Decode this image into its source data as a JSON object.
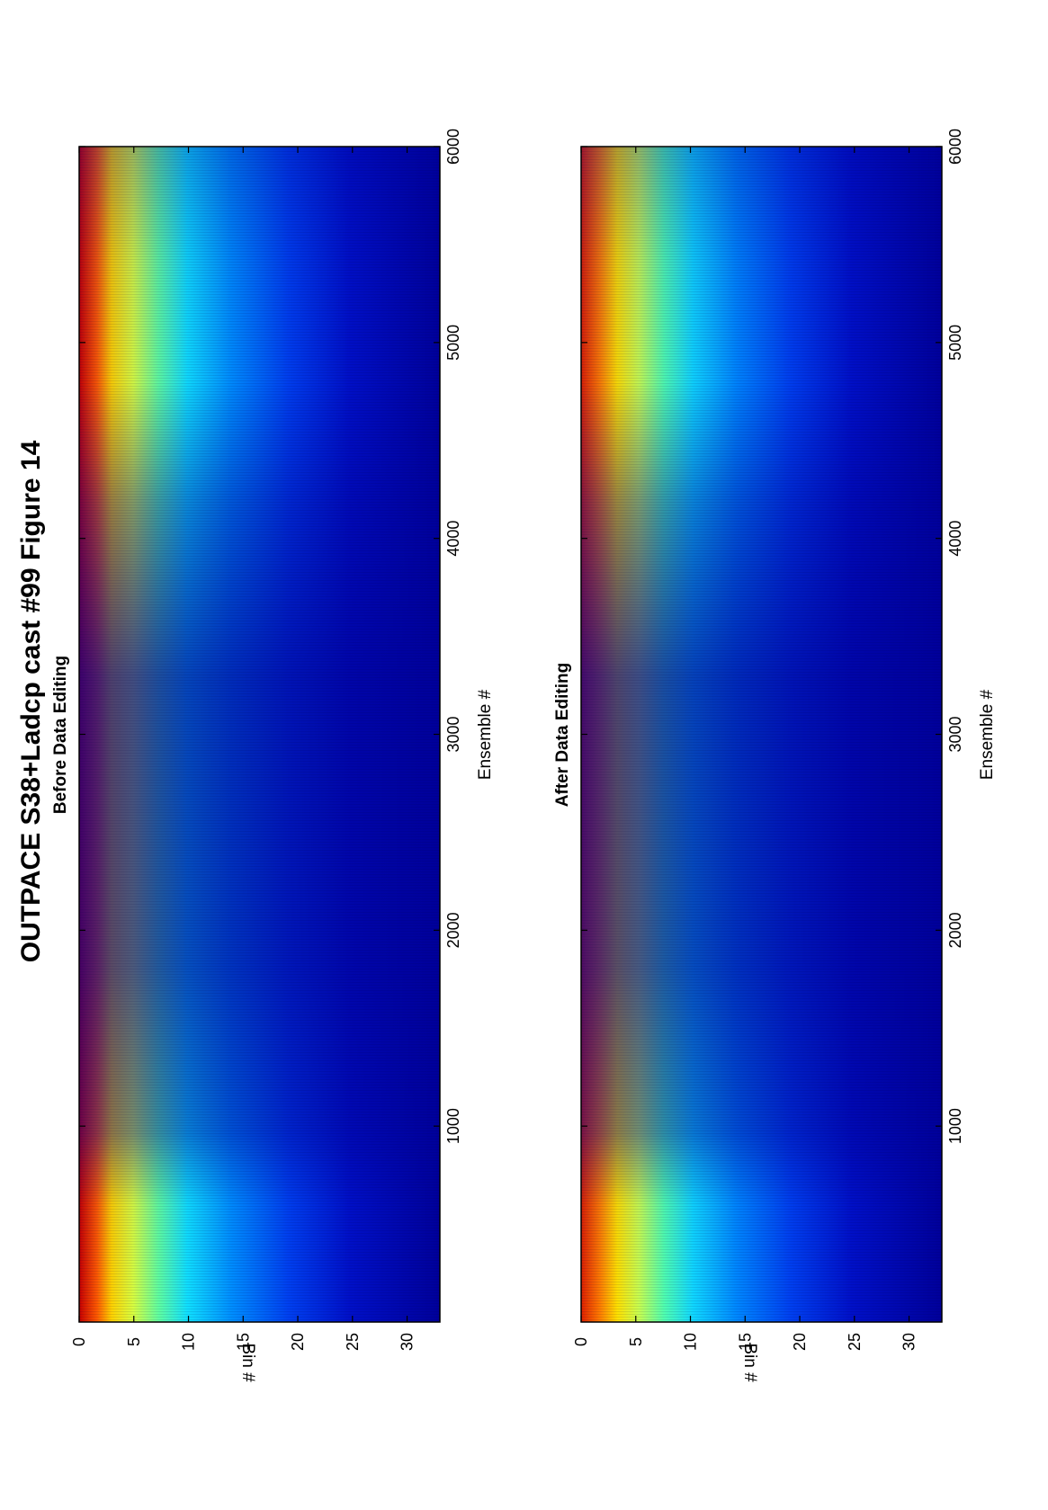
{
  "figure": {
    "title": "OUTPACE S38+Ladcp cast #99  Figure 14",
    "orientation": "rotated 90 degrees counter-clockwise"
  },
  "chart_data": [
    {
      "type": "heatmap",
      "title": "Before Data Editing",
      "xlabel": "Ensemble #",
      "ylabel": "Bin #",
      "xlim": [
        0,
        6000
      ],
      "ylim": [
        0,
        33
      ],
      "y_reversed": true,
      "xticks": [
        1000,
        2000,
        3000,
        4000,
        5000,
        6000
      ],
      "yticks": [
        0,
        5,
        10,
        15,
        20,
        25,
        30
      ],
      "colormap": "jet",
      "data_summary": "High values (red/yellow) near bins 1-7, decreasing to low values (dark blue) at bins 25-33; deeper penetration of high values near ensembles ~200-900 and ~4700-5700."
    },
    {
      "type": "heatmap",
      "title": "After Data Editing",
      "xlabel": "Ensemble #",
      "ylabel": "Bin #",
      "xlim": [
        0,
        6000
      ],
      "ylim": [
        0,
        33
      ],
      "y_reversed": true,
      "xticks": [
        1000,
        2000,
        3000,
        4000,
        5000,
        6000
      ],
      "yticks": [
        0,
        5,
        10,
        15,
        20,
        25,
        30
      ],
      "colormap": "jet",
      "data_summary": "Same structure as before editing, with slightly reduced high values near bins 1-2."
    }
  ]
}
